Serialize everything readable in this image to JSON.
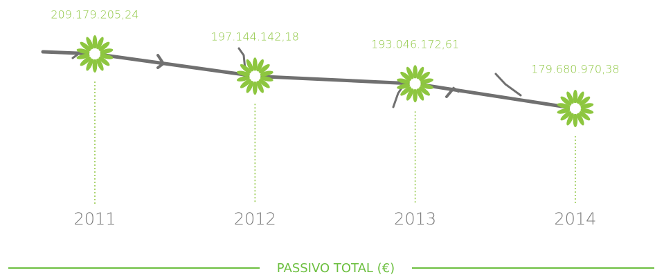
{
  "chart_data": {
    "type": "line",
    "title": "PASSIVO TOTAL (€)",
    "categories": [
      "2011",
      "2012",
      "2013",
      "2014"
    ],
    "values": [
      209179205.24,
      197144142.18,
      193046172.61,
      179680970.38
    ],
    "value_labels": [
      "209.179.205,24",
      "197.144.142,18",
      "193.046.172,61",
      "179.680.970,38"
    ],
    "color": "#8dc63f",
    "line_color": "#707070"
  }
}
